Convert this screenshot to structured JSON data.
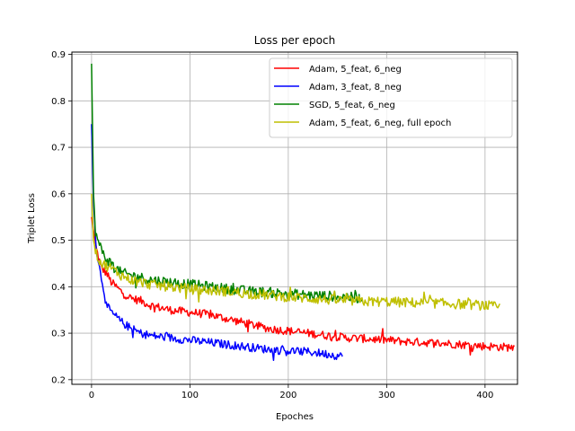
{
  "chart_data": {
    "type": "line",
    "title": "Loss per epoch",
    "xlabel": "Epoches",
    "ylabel": "Triplet Loss",
    "xlim": [
      -20,
      433
    ],
    "ylim": [
      0.19,
      0.905
    ],
    "xticks": [
      0,
      100,
      200,
      300,
      400
    ],
    "yticks": [
      0.2,
      0.3,
      0.4,
      0.5,
      0.6,
      0.7,
      0.8,
      0.9
    ],
    "xtick_labels": [
      "0",
      "100",
      "200",
      "300",
      "400"
    ],
    "ytick_labels": [
      "0.2",
      "0.3",
      "0.4",
      "0.5",
      "0.6",
      "0.7",
      "0.8",
      "0.9"
    ],
    "grid": true,
    "legend_position": "top-right",
    "series": [
      {
        "name": "Adam, 5_feat, 6_neg",
        "color": "#ff0000",
        "points": [
          [
            0,
            0.55
          ],
          [
            2,
            0.52
          ],
          [
            5,
            0.48
          ],
          [
            10,
            0.44
          ],
          [
            15,
            0.43
          ],
          [
            20,
            0.41
          ],
          [
            30,
            0.39
          ],
          [
            40,
            0.375
          ],
          [
            50,
            0.37
          ],
          [
            60,
            0.36
          ],
          [
            70,
            0.355
          ],
          [
            80,
            0.35
          ],
          [
            100,
            0.345
          ],
          [
            120,
            0.34
          ],
          [
            140,
            0.33
          ],
          [
            160,
            0.32
          ],
          [
            180,
            0.31
          ],
          [
            200,
            0.305
          ],
          [
            220,
            0.3
          ],
          [
            240,
            0.295
          ],
          [
            260,
            0.29
          ],
          [
            280,
            0.288
          ],
          [
            300,
            0.285
          ],
          [
            320,
            0.282
          ],
          [
            340,
            0.28
          ],
          [
            360,
            0.278
          ],
          [
            380,
            0.275
          ],
          [
            400,
            0.272
          ],
          [
            420,
            0.27
          ],
          [
            430,
            0.27
          ]
        ],
        "noise": 0.009
      },
      {
        "name": "Adam, 3_feat, 8_neg",
        "color": "#0000ff",
        "points": [
          [
            0,
            0.75
          ],
          [
            2,
            0.58
          ],
          [
            5,
            0.48
          ],
          [
            8,
            0.44
          ],
          [
            12,
            0.4
          ],
          [
            15,
            0.36
          ],
          [
            20,
            0.345
          ],
          [
            30,
            0.325
          ],
          [
            40,
            0.31
          ],
          [
            50,
            0.3
          ],
          [
            60,
            0.295
          ],
          [
            80,
            0.29
          ],
          [
            100,
            0.285
          ],
          [
            120,
            0.28
          ],
          [
            140,
            0.275
          ],
          [
            160,
            0.27
          ],
          [
            180,
            0.265
          ],
          [
            200,
            0.262
          ],
          [
            220,
            0.26
          ],
          [
            240,
            0.255
          ],
          [
            255,
            0.25
          ]
        ],
        "noise": 0.009
      },
      {
        "name": "SGD, 5_feat, 6_neg",
        "color": "#008000",
        "points": [
          [
            0,
            0.88
          ],
          [
            2,
            0.6
          ],
          [
            4,
            0.52
          ],
          [
            6,
            0.5
          ],
          [
            10,
            0.48
          ],
          [
            15,
            0.46
          ],
          [
            20,
            0.45
          ],
          [
            30,
            0.43
          ],
          [
            40,
            0.425
          ],
          [
            50,
            0.42
          ],
          [
            60,
            0.415
          ],
          [
            80,
            0.41
          ],
          [
            100,
            0.405
          ],
          [
            120,
            0.4
          ],
          [
            140,
            0.395
          ],
          [
            160,
            0.39
          ],
          [
            180,
            0.388
          ],
          [
            200,
            0.385
          ],
          [
            220,
            0.382
          ],
          [
            240,
            0.38
          ],
          [
            260,
            0.378
          ],
          [
            275,
            0.375
          ]
        ],
        "noise": 0.011
      },
      {
        "name": "Adam, 5_feat, 6_neg, full epoch",
        "color": "#bfbf00",
        "points": [
          [
            0,
            0.6
          ],
          [
            2,
            0.5
          ],
          [
            5,
            0.47
          ],
          [
            10,
            0.45
          ],
          [
            20,
            0.44
          ],
          [
            30,
            0.425
          ],
          [
            40,
            0.415
          ],
          [
            50,
            0.41
          ],
          [
            60,
            0.405
          ],
          [
            80,
            0.4
          ],
          [
            100,
            0.395
          ],
          [
            120,
            0.392
          ],
          [
            140,
            0.39
          ],
          [
            160,
            0.385
          ],
          [
            180,
            0.382
          ],
          [
            200,
            0.378
          ],
          [
            220,
            0.375
          ],
          [
            240,
            0.372
          ],
          [
            260,
            0.37
          ],
          [
            280,
            0.368
          ],
          [
            300,
            0.368
          ],
          [
            320,
            0.366
          ],
          [
            340,
            0.365
          ],
          [
            360,
            0.364
          ],
          [
            380,
            0.362
          ],
          [
            400,
            0.36
          ],
          [
            415,
            0.355
          ]
        ],
        "noise": 0.011
      }
    ]
  }
}
